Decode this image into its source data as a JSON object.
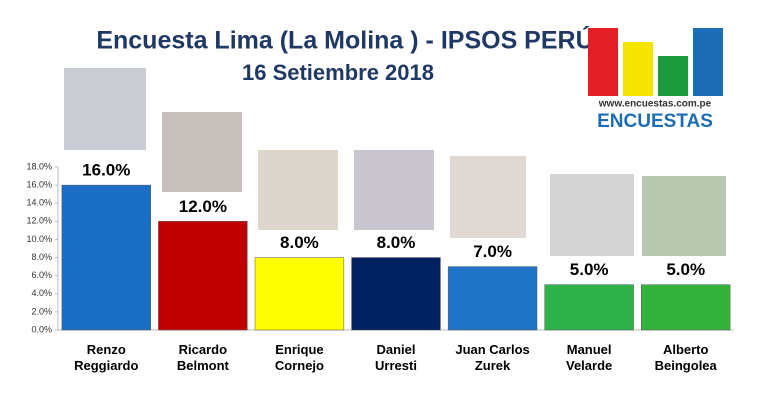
{
  "chart_data": {
    "type": "bar",
    "title": "Encuesta Lima (La Molina ) - IPSOS PERÚ",
    "subtitle": "16 Setiembre 2018",
    "logo_url": "www.encuestas.com.pe",
    "logo_name": "ENCUESTAS",
    "categories": [
      "Renzo\nReggiardo",
      "Ricardo\nBelmont",
      "Enrique\nCornejo",
      "Daniel\nUrresti",
      "Juan Carlos\nZurek",
      "Manuel\nVelarde",
      "Alberto\nBeingolea"
    ],
    "values": [
      16,
      12,
      8,
      8,
      7,
      5,
      5
    ],
    "value_labels": [
      "16.0%",
      "12.0%",
      "8.0%",
      "8.0%",
      "7.0%",
      "5.0%",
      "5.0%"
    ],
    "colors": [
      "#1a6fc4",
      "#c00000",
      "#ffff00",
      "#002060",
      "#1f74c8",
      "#2db34a",
      "#34b23b"
    ],
    "ylim": [
      0,
      18
    ],
    "yticks": [
      {
        "value": 0,
        "label": "0.0%"
      },
      {
        "value": 2,
        "label": "2.0%"
      },
      {
        "value": 4,
        "label": "4.0%"
      },
      {
        "value": 6,
        "label": "6.0%"
      },
      {
        "value": 8,
        "label": "8.0%"
      },
      {
        "value": 10,
        "label": "10.0%"
      },
      {
        "value": 12,
        "label": "12.0%"
      },
      {
        "value": 14,
        "label": "14.0%"
      },
      {
        "value": 16,
        "label": "16.0%"
      },
      {
        "value": 18,
        "label": "18.0%"
      }
    ]
  }
}
